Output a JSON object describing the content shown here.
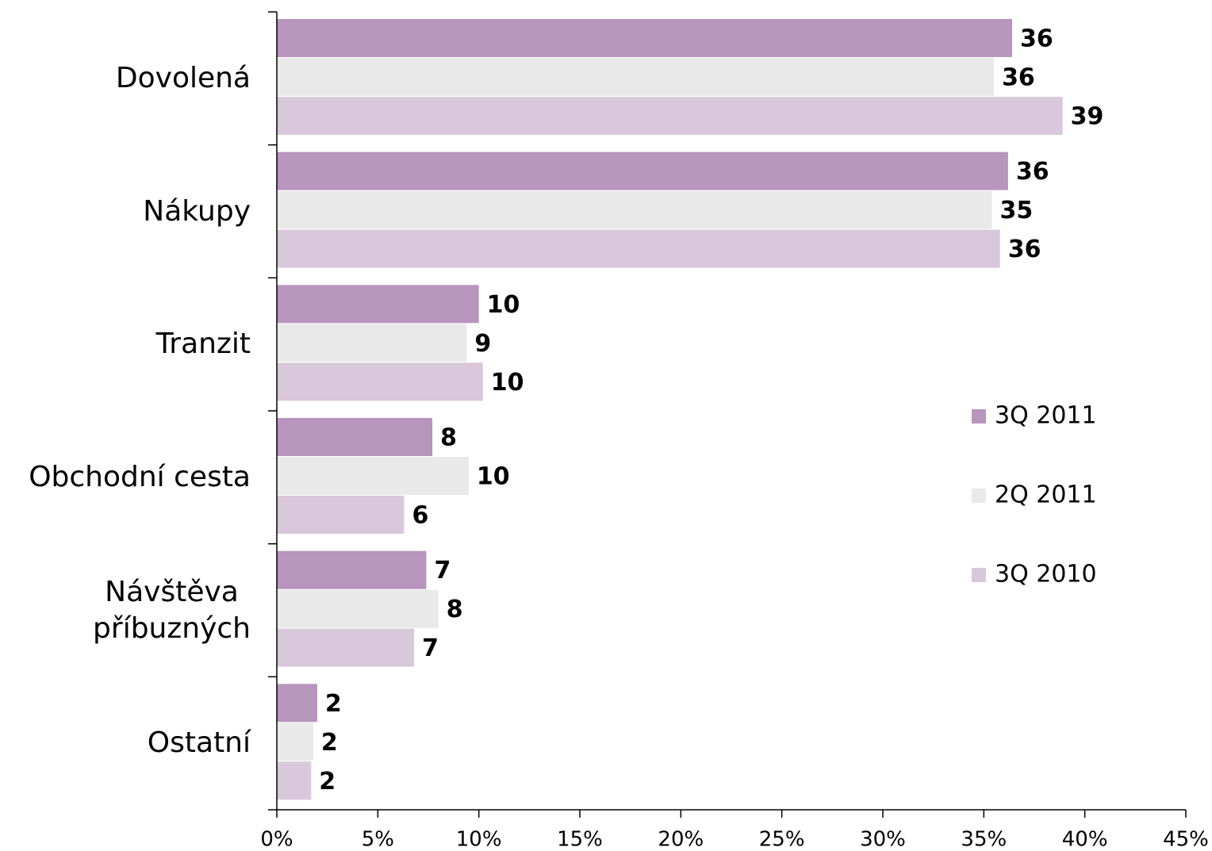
{
  "chart_data": {
    "type": "barh",
    "categories": [
      "Dovolená",
      "Nákupy",
      "Tranzit",
      "Obchodní cesta",
      "Návštěva\npříbuzných",
      "Ostatní"
    ],
    "series": [
      {
        "name": "3Q 2011",
        "color": "#b795bd",
        "values": [
          36.4,
          36.2,
          10.0,
          7.7,
          7.4,
          2.0
        ],
        "value_labels": [
          "36",
          "36",
          "10",
          "8",
          "7",
          "2"
        ]
      },
      {
        "name": "2Q 2011",
        "color": "#e9e9e9",
        "values": [
          35.5,
          35.4,
          9.4,
          9.5,
          8.0,
          1.8
        ],
        "value_labels": [
          "36",
          "35",
          "9",
          "10",
          "8",
          "2"
        ]
      },
      {
        "name": "3Q 2010",
        "color": "#d9c7db",
        "values": [
          38.9,
          35.8,
          10.2,
          6.3,
          6.8,
          1.7
        ],
        "value_labels": [
          "39",
          "36",
          "10",
          "6",
          "7",
          "2"
        ]
      }
    ],
    "xlim": [
      0,
      45
    ],
    "xticks": [
      {
        "value": 0,
        "label": "0%"
      },
      {
        "value": 5,
        "label": "5%"
      },
      {
        "value": 10,
        "label": "10%"
      },
      {
        "value": 15,
        "label": "15%"
      },
      {
        "value": 20,
        "label": "20%"
      },
      {
        "value": 25,
        "label": "25%"
      },
      {
        "value": 30,
        "label": "30%"
      },
      {
        "value": 35,
        "label": "35%"
      },
      {
        "value": 40,
        "label": "40%"
      },
      {
        "value": 45,
        "label": "45%"
      }
    ],
    "legend": "right"
  }
}
